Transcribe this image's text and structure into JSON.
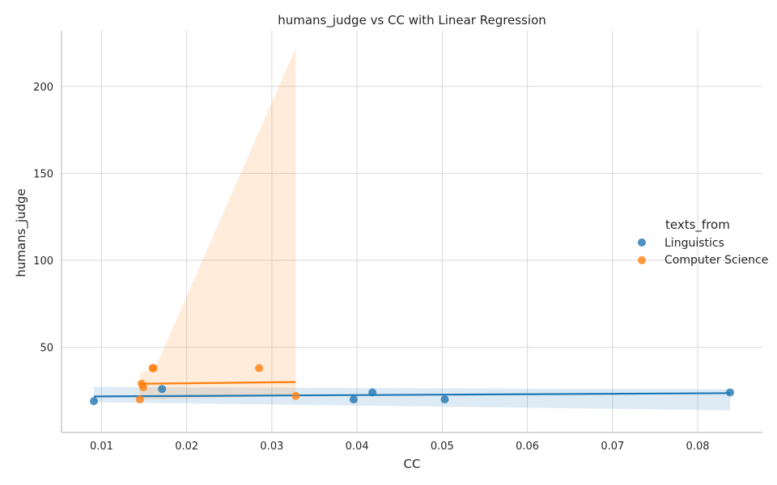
{
  "chart_data": {
    "type": "scatter",
    "title": "humans_judge vs CC with Linear Regression",
    "xlabel": "CC",
    "ylabel": "humans_judge",
    "xlim": [
      0.0053,
      0.0876
    ],
    "ylim": [
      1,
      232
    ],
    "xticks": [
      "0.01",
      "0.02",
      "0.03",
      "0.04",
      "0.05",
      "0.06",
      "0.07",
      "0.08"
    ],
    "yticks": [
      "50",
      "100",
      "150",
      "200"
    ],
    "grid": true,
    "legend": {
      "title": "texts_from",
      "placement": "right"
    },
    "series": [
      {
        "name": "Linguistics",
        "color": "#1f77b4",
        "points": [
          {
            "x": 0.0091,
            "y": 19
          },
          {
            "x": 0.0171,
            "y": 26
          },
          {
            "x": 0.0396,
            "y": 20
          },
          {
            "x": 0.0418,
            "y": 24
          },
          {
            "x": 0.0503,
            "y": 20
          },
          {
            "x": 0.0838,
            "y": 24
          }
        ],
        "regression": {
          "x": [
            0.0091,
            0.0838
          ],
          "y": [
            21.7,
            23.6
          ]
        },
        "ci_band": {
          "x": [
            0.0091,
            0.0838
          ],
          "upper": [
            27.2,
            25.8
          ],
          "lower": [
            18.4,
            13.7
          ]
        }
      },
      {
        "name": "Computer Science",
        "color": "#ff7f0e",
        "points": [
          {
            "x": 0.0145,
            "y": 20
          },
          {
            "x": 0.0147,
            "y": 29
          },
          {
            "x": 0.0149,
            "y": 27
          },
          {
            "x": 0.016,
            "y": 38
          },
          {
            "x": 0.0161,
            "y": 38
          },
          {
            "x": 0.0285,
            "y": 38
          },
          {
            "x": 0.0328,
            "y": 22
          }
        ],
        "regression": {
          "x": [
            0.0145,
            0.0328
          ],
          "y": [
            29.0,
            30.0
          ]
        },
        "ci_band": {
          "x": [
            0.0145,
            0.0163,
            0.0328
          ],
          "upper": [
            35.0,
            38.0,
            222.0
          ],
          "lower": [
            20.0,
            20.0,
            22.0
          ]
        }
      }
    ]
  }
}
